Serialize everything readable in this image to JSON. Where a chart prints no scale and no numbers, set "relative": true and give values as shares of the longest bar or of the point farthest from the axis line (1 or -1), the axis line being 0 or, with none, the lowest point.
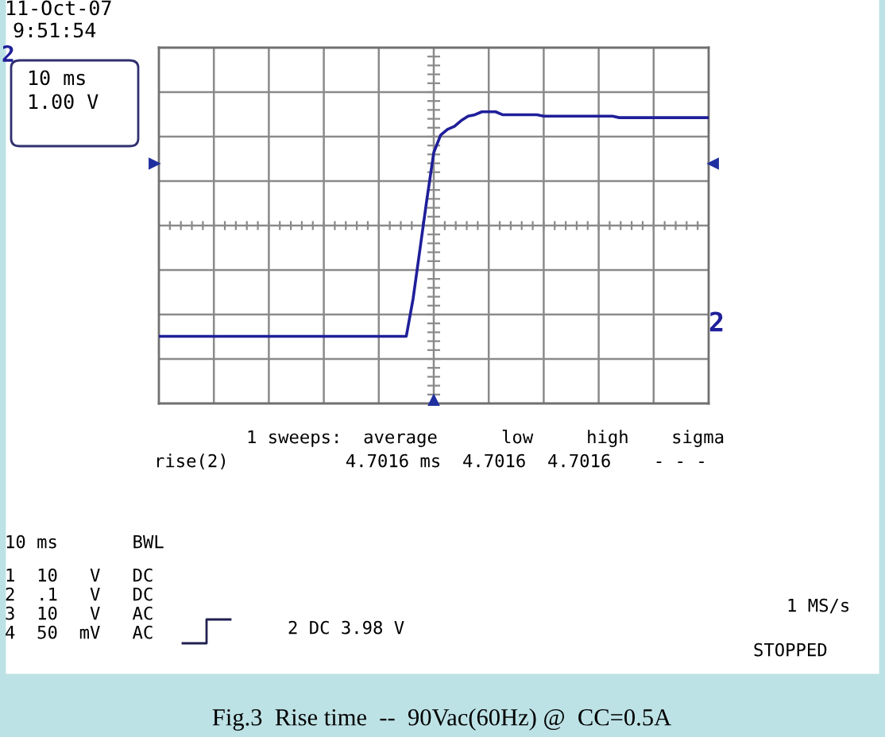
{
  "chart_data": {
    "type": "line",
    "relative": true,
    "grid": true,
    "color": "#1f1f9a",
    "categories": [
      null,
      null,
      null,
      null,
      null,
      null,
      null,
      null,
      null,
      null,
      null,
      null,
      null,
      null,
      null,
      null,
      null,
      null,
      null,
      null,
      null,
      null,
      null,
      null,
      null,
      null,
      null,
      null,
      null,
      null,
      null,
      null,
      null,
      null,
      null,
      null,
      null,
      null,
      null,
      null,
      null,
      null,
      null,
      null,
      null,
      null,
      null,
      null,
      null,
      null,
      null,
      null,
      null,
      null,
      null,
      null,
      null,
      null,
      null,
      null,
      null,
      null,
      null,
      null,
      null,
      null,
      null,
      null,
      null,
      null,
      null,
      null,
      null,
      null,
      null,
      null,
      null,
      null,
      null,
      null,
      null
    ],
    "values": [
      0.23,
      0.23,
      0.23,
      0.23,
      0.23,
      0.23,
      0.23,
      0.23,
      0.23,
      0.23,
      0.23,
      0.23,
      0.23,
      0.23,
      0.23,
      0.23,
      0.23,
      0.23,
      0.23,
      0.23,
      0.23,
      0.23,
      0.23,
      0.23,
      0.23,
      0.23,
      0.23,
      0.23,
      0.23,
      0.23,
      0.23,
      0.23,
      0.23,
      0.23,
      0.23,
      0.23,
      0.23,
      0.36,
      0.53,
      0.7,
      0.86,
      0.92,
      0.94,
      0.95,
      0.97,
      0.985,
      0.99,
      1,
      1,
      1,
      0.99,
      0.99,
      0.99,
      0.99,
      0.99,
      0.99,
      0.985,
      0.985,
      0.985,
      0.985,
      0.985,
      0.985,
      0.985,
      0.985,
      0.985,
      0.985,
      0.985,
      0.98,
      0.98,
      0.98,
      0.98,
      0.98,
      0.98,
      0.98,
      0.98,
      0.98,
      0.98,
      0.98,
      0.98,
      0.98,
      0.98
    ],
    "annotations": [
      "11-Oct-07",
      "9:51:54",
      "2",
      "10 ms",
      "1.00 V",
      "2",
      "1 sweeps:  average      low     high    sigma",
      "rise(2)           4.7016 ms  4.7016  4.7016    - - -",
      "10 ms       BWL",
      "1  10   V   DC",
      "2  .1   V   DC",
      "3  10   V   AC",
      "4  50  mV   AC",
      "2 DC 3.98 V",
      "1 MS/s",
      "STOPPED",
      "Fig.3  Rise time  --  90Vac(60Hz) @  CC=0.5A"
    ]
  }
}
